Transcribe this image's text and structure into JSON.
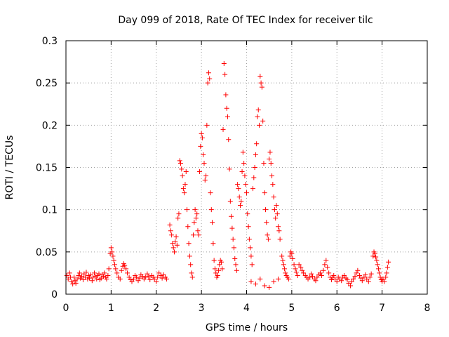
{
  "chart_data": {
    "type": "scatter",
    "title": "Day 099 of 2018, Rate Of TEC Index for receiver tilc",
    "xlabel": "GPS time / hours",
    "ylabel": "ROTI / TECUs",
    "xlim": [
      0,
      8
    ],
    "ylim": [
      0,
      0.3
    ],
    "xticks": [
      0,
      1,
      2,
      3,
      4,
      5,
      6,
      7,
      8
    ],
    "yticks": [
      0,
      0.05,
      0.1,
      0.15,
      0.2,
      0.25,
      0.3
    ],
    "ytick_labels": [
      "0",
      "0.05",
      "0.1",
      "0.15",
      "0.2",
      "0.25",
      "0.3"
    ],
    "grid": true,
    "marker": "+",
    "color": "#ff0000",
    "series": [
      {
        "name": "ROTI",
        "points": [
          [
            0.02,
            0.022
          ],
          [
            0.05,
            0.018
          ],
          [
            0.08,
            0.025
          ],
          [
            0.1,
            0.02
          ],
          [
            0.12,
            0.015
          ],
          [
            0.15,
            0.012
          ],
          [
            0.18,
            0.02
          ],
          [
            0.2,
            0.016
          ],
          [
            0.22,
            0.013
          ],
          [
            0.25,
            0.018
          ],
          [
            0.28,
            0.022
          ],
          [
            0.3,
            0.025
          ],
          [
            0.32,
            0.019
          ],
          [
            0.35,
            0.021
          ],
          [
            0.38,
            0.017
          ],
          [
            0.4,
            0.024
          ],
          [
            0.43,
            0.02
          ],
          [
            0.45,
            0.026
          ],
          [
            0.48,
            0.018
          ],
          [
            0.5,
            0.022
          ],
          [
            0.52,
            0.019
          ],
          [
            0.55,
            0.023
          ],
          [
            0.58,
            0.016
          ],
          [
            0.6,
            0.02
          ],
          [
            0.63,
            0.025
          ],
          [
            0.65,
            0.021
          ],
          [
            0.68,
            0.018
          ],
          [
            0.7,
            0.022
          ],
          [
            0.73,
            0.024
          ],
          [
            0.75,
            0.017
          ],
          [
            0.78,
            0.019
          ],
          [
            0.8,
            0.023
          ],
          [
            0.83,
            0.021
          ],
          [
            0.85,
            0.025
          ],
          [
            0.88,
            0.02
          ],
          [
            0.9,
            0.018
          ],
          [
            0.93,
            0.022
          ],
          [
            0.95,
            0.03
          ],
          [
            0.98,
            0.048
          ],
          [
            1.0,
            0.055
          ],
          [
            1.02,
            0.05
          ],
          [
            1.04,
            0.045
          ],
          [
            1.06,
            0.04
          ],
          [
            1.08,
            0.035
          ],
          [
            1.1,
            0.03
          ],
          [
            1.13,
            0.025
          ],
          [
            1.16,
            0.02
          ],
          [
            1.2,
            0.018
          ],
          [
            1.23,
            0.028
          ],
          [
            1.26,
            0.033
          ],
          [
            1.28,
            0.036
          ],
          [
            1.3,
            0.034
          ],
          [
            1.33,
            0.03
          ],
          [
            1.36,
            0.025
          ],
          [
            1.4,
            0.02
          ],
          [
            1.43,
            0.017
          ],
          [
            1.46,
            0.015
          ],
          [
            1.5,
            0.018
          ],
          [
            1.53,
            0.022
          ],
          [
            1.56,
            0.02
          ],
          [
            1.6,
            0.016
          ],
          [
            1.63,
            0.019
          ],
          [
            1.66,
            0.023
          ],
          [
            1.7,
            0.021
          ],
          [
            1.73,
            0.018
          ],
          [
            1.76,
            0.02
          ],
          [
            1.8,
            0.024
          ],
          [
            1.83,
            0.021
          ],
          [
            1.86,
            0.017
          ],
          [
            1.9,
            0.022
          ],
          [
            1.93,
            0.02
          ],
          [
            1.96,
            0.018
          ],
          [
            2.0,
            0.015
          ],
          [
            2.03,
            0.02
          ],
          [
            2.06,
            0.025
          ],
          [
            2.1,
            0.022
          ],
          [
            2.13,
            0.019
          ],
          [
            2.16,
            0.023
          ],
          [
            2.2,
            0.02
          ],
          [
            2.23,
            0.018
          ],
          [
            2.3,
            0.082
          ],
          [
            2.32,
            0.075
          ],
          [
            2.34,
            0.07
          ],
          [
            2.36,
            0.06
          ],
          [
            2.38,
            0.055
          ],
          [
            2.4,
            0.05
          ],
          [
            2.42,
            0.062
          ],
          [
            2.44,
            0.068
          ],
          [
            2.46,
            0.058
          ],
          [
            2.48,
            0.09
          ],
          [
            2.5,
            0.095
          ],
          [
            2.52,
            0.158
          ],
          [
            2.54,
            0.155
          ],
          [
            2.56,
            0.148
          ],
          [
            2.58,
            0.14
          ],
          [
            2.6,
            0.125
          ],
          [
            2.62,
            0.12
          ],
          [
            2.64,
            0.13
          ],
          [
            2.66,
            0.145
          ],
          [
            2.68,
            0.1
          ],
          [
            2.7,
            0.08
          ],
          [
            2.72,
            0.06
          ],
          [
            2.74,
            0.045
          ],
          [
            2.76,
            0.035
          ],
          [
            2.78,
            0.025
          ],
          [
            2.8,
            0.02
          ],
          [
            2.82,
            0.07
          ],
          [
            2.84,
            0.085
          ],
          [
            2.86,
            0.1
          ],
          [
            2.88,
            0.09
          ],
          [
            2.9,
            0.095
          ],
          [
            2.92,
            0.075
          ],
          [
            2.94,
            0.07
          ],
          [
            2.96,
            0.145
          ],
          [
            2.98,
            0.175
          ],
          [
            3.0,
            0.19
          ],
          [
            3.02,
            0.185
          ],
          [
            3.04,
            0.165
          ],
          [
            3.06,
            0.155
          ],
          [
            3.08,
            0.135
          ],
          [
            3.1,
            0.14
          ],
          [
            3.12,
            0.2
          ],
          [
            3.14,
            0.25
          ],
          [
            3.16,
            0.262
          ],
          [
            3.18,
            0.255
          ],
          [
            3.2,
            0.12
          ],
          [
            3.22,
            0.1
          ],
          [
            3.24,
            0.085
          ],
          [
            3.26,
            0.06
          ],
          [
            3.28,
            0.04
          ],
          [
            3.3,
            0.03
          ],
          [
            3.32,
            0.025
          ],
          [
            3.34,
            0.02
          ],
          [
            3.36,
            0.022
          ],
          [
            3.38,
            0.028
          ],
          [
            3.4,
            0.035
          ],
          [
            3.42,
            0.04
          ],
          [
            3.44,
            0.038
          ],
          [
            3.46,
            0.03
          ],
          [
            3.48,
            0.195
          ],
          [
            3.5,
            0.273
          ],
          [
            3.52,
            0.26
          ],
          [
            3.54,
            0.236
          ],
          [
            3.56,
            0.22
          ],
          [
            3.58,
            0.21
          ],
          [
            3.6,
            0.183
          ],
          [
            3.62,
            0.148
          ],
          [
            3.64,
            0.11
          ],
          [
            3.66,
            0.092
          ],
          [
            3.68,
            0.078
          ],
          [
            3.7,
            0.065
          ],
          [
            3.72,
            0.055
          ],
          [
            3.74,
            0.042
          ],
          [
            3.76,
            0.035
          ],
          [
            3.78,
            0.028
          ],
          [
            3.8,
            0.13
          ],
          [
            3.82,
            0.125
          ],
          [
            3.84,
            0.115
          ],
          [
            3.86,
            0.105
          ],
          [
            3.88,
            0.11
          ],
          [
            3.9,
            0.145
          ],
          [
            3.92,
            0.168
          ],
          [
            3.94,
            0.155
          ],
          [
            3.96,
            0.14
          ],
          [
            3.98,
            0.13
          ],
          [
            4.0,
            0.12
          ],
          [
            4.02,
            0.095
          ],
          [
            4.04,
            0.08
          ],
          [
            4.06,
            0.065
          ],
          [
            4.08,
            0.055
          ],
          [
            4.1,
            0.045
          ],
          [
            4.12,
            0.035
          ],
          [
            4.14,
            0.125
          ],
          [
            4.16,
            0.138
          ],
          [
            4.18,
            0.15
          ],
          [
            4.2,
            0.165
          ],
          [
            4.22,
            0.178
          ],
          [
            4.24,
            0.21
          ],
          [
            4.26,
            0.218
          ],
          [
            4.28,
            0.2
          ],
          [
            4.3,
            0.258
          ],
          [
            4.32,
            0.25
          ],
          [
            4.34,
            0.245
          ],
          [
            4.36,
            0.205
          ],
          [
            4.38,
            0.155
          ],
          [
            4.4,
            0.12
          ],
          [
            4.42,
            0.1
          ],
          [
            4.44,
            0.085
          ],
          [
            4.46,
            0.07
          ],
          [
            4.48,
            0.065
          ],
          [
            4.5,
            0.16
          ],
          [
            4.52,
            0.168
          ],
          [
            4.54,
            0.155
          ],
          [
            4.56,
            0.14
          ],
          [
            4.58,
            0.13
          ],
          [
            4.6,
            0.115
          ],
          [
            4.62,
            0.1
          ],
          [
            4.64,
            0.09
          ],
          [
            4.66,
            0.105
          ],
          [
            4.68,
            0.095
          ],
          [
            4.7,
            0.08
          ],
          [
            4.72,
            0.075
          ],
          [
            4.74,
            0.065
          ],
          [
            4.1,
            0.015
          ],
          [
            4.2,
            0.012
          ],
          [
            4.3,
            0.018
          ],
          [
            4.4,
            0.01
          ],
          [
            4.5,
            0.008
          ],
          [
            4.6,
            0.015
          ],
          [
            4.7,
            0.018
          ],
          [
            4.78,
            0.045
          ],
          [
            4.8,
            0.04
          ],
          [
            4.82,
            0.035
          ],
          [
            4.84,
            0.03
          ],
          [
            4.86,
            0.025
          ],
          [
            4.88,
            0.022
          ],
          [
            4.9,
            0.02
          ],
          [
            4.93,
            0.018
          ],
          [
            4.96,
            0.045
          ],
          [
            4.98,
            0.05
          ],
          [
            5.0,
            0.048
          ],
          [
            5.02,
            0.042
          ],
          [
            5.05,
            0.035
          ],
          [
            5.08,
            0.03
          ],
          [
            5.1,
            0.026
          ],
          [
            5.13,
            0.022
          ],
          [
            5.16,
            0.035
          ],
          [
            5.2,
            0.032
          ],
          [
            5.23,
            0.028
          ],
          [
            5.26,
            0.025
          ],
          [
            5.3,
            0.022
          ],
          [
            5.33,
            0.02
          ],
          [
            5.36,
            0.018
          ],
          [
            5.4,
            0.02
          ],
          [
            5.43,
            0.024
          ],
          [
            5.46,
            0.021
          ],
          [
            5.5,
            0.018
          ],
          [
            5.53,
            0.016
          ],
          [
            5.56,
            0.02
          ],
          [
            5.6,
            0.023
          ],
          [
            5.63,
            0.025
          ],
          [
            5.66,
            0.022
          ],
          [
            5.7,
            0.028
          ],
          [
            5.73,
            0.035
          ],
          [
            5.76,
            0.04
          ],
          [
            5.79,
            0.032
          ],
          [
            5.82,
            0.025
          ],
          [
            5.85,
            0.02
          ],
          [
            5.88,
            0.017
          ],
          [
            5.9,
            0.02
          ],
          [
            5.93,
            0.022
          ],
          [
            5.96,
            0.018
          ],
          [
            6.0,
            0.015
          ],
          [
            6.03,
            0.02
          ],
          [
            6.06,
            0.018
          ],
          [
            6.1,
            0.016
          ],
          [
            6.13,
            0.02
          ],
          [
            6.16,
            0.022
          ],
          [
            6.2,
            0.019
          ],
          [
            6.23,
            0.017
          ],
          [
            6.26,
            0.013
          ],
          [
            6.3,
            0.01
          ],
          [
            6.33,
            0.015
          ],
          [
            6.36,
            0.018
          ],
          [
            6.4,
            0.021
          ],
          [
            6.43,
            0.025
          ],
          [
            6.46,
            0.028
          ],
          [
            6.5,
            0.022
          ],
          [
            6.53,
            0.019
          ],
          [
            6.56,
            0.016
          ],
          [
            6.6,
            0.02
          ],
          [
            6.63,
            0.023
          ],
          [
            6.66,
            0.018
          ],
          [
            6.7,
            0.015
          ],
          [
            6.73,
            0.02
          ],
          [
            6.76,
            0.024
          ],
          [
            6.8,
            0.045
          ],
          [
            6.82,
            0.05
          ],
          [
            6.84,
            0.048
          ],
          [
            6.86,
            0.044
          ],
          [
            6.88,
            0.04
          ],
          [
            6.9,
            0.035
          ],
          [
            6.92,
            0.03
          ],
          [
            6.94,
            0.025
          ],
          [
            6.96,
            0.02
          ],
          [
            6.98,
            0.017
          ],
          [
            7.0,
            0.015
          ],
          [
            7.02,
            0.018
          ],
          [
            7.05,
            0.015
          ],
          [
            7.08,
            0.02
          ],
          [
            7.1,
            0.025
          ],
          [
            7.12,
            0.032
          ],
          [
            7.14,
            0.038
          ]
        ]
      }
    ]
  }
}
